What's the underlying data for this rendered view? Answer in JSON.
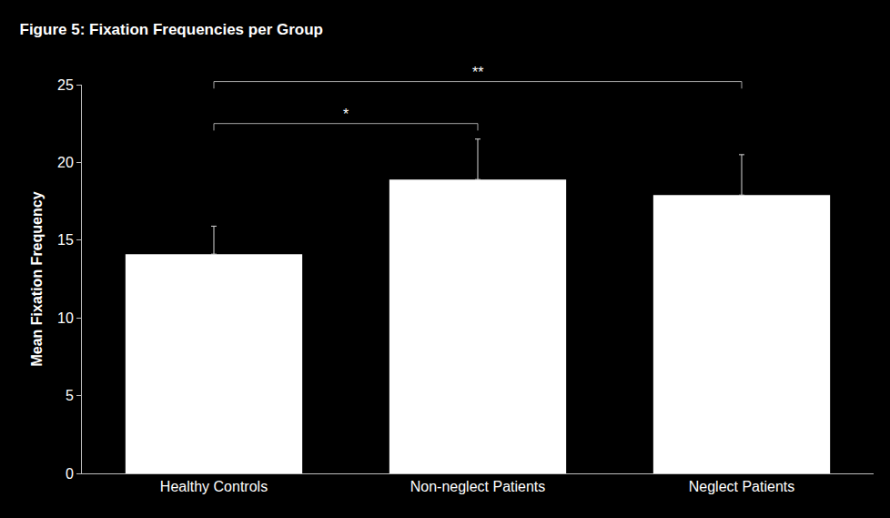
{
  "chart_data": {
    "type": "bar",
    "title": "Figure 5: Fixation Frequencies per Group",
    "y_label": "Mean Fixation Frequency",
    "categories": [
      "Healthy Controls",
      "Non-neglect Patients",
      "Neglect Patients"
    ],
    "values": [
      14.1,
      18.9,
      17.9
    ],
    "errors": [
      1.8,
      2.6,
      2.6
    ],
    "color": "#ffffff",
    "ylim": [
      0,
      25
    ],
    "yticks": [
      0,
      5,
      10,
      15,
      20,
      25
    ],
    "grid": false,
    "annotations": [
      {
        "from": "Healthy Controls",
        "to": "Non-neglect Patients",
        "text": "*"
      },
      {
        "from": "Healthy Controls",
        "to": "Neglect Patients",
        "text": "**"
      }
    ]
  }
}
